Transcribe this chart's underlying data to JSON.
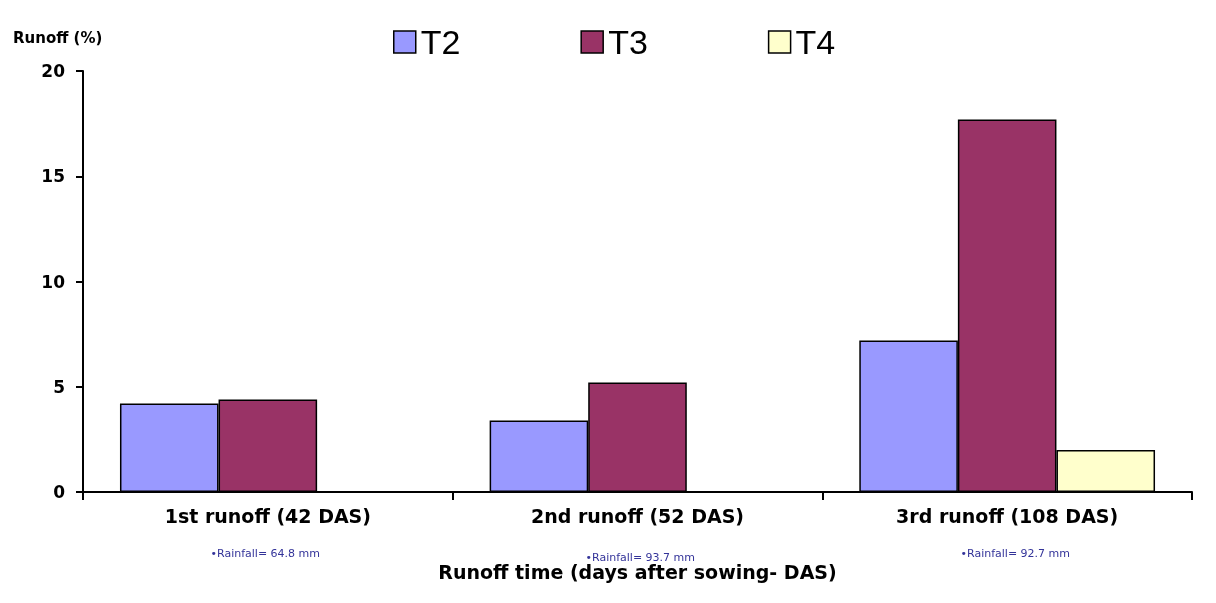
{
  "chart_data": {
    "type": "bar",
    "ylabel": "Runoff (%)",
    "xlabel": "Runoff time (days after sowing- DAS)",
    "categories": [
      "1st runoff (42 DAS)",
      "2nd runoff (52 DAS)",
      "3rd runoff (108 DAS)"
    ],
    "series": [
      {
        "name": "T2",
        "color": "#9999ff",
        "values": [
          4.2,
          3.4,
          7.2
        ]
      },
      {
        "name": "T3",
        "color": "#993366",
        "values": [
          4.4,
          5.2,
          17.7
        ]
      },
      {
        "name": "T4",
        "color": "#ffffcc",
        "values": [
          null,
          null,
          2.0
        ]
      }
    ],
    "ylim": [
      0,
      20
    ],
    "yticks": [
      0,
      5,
      10,
      15,
      20
    ],
    "grid": false,
    "legend": "top",
    "annotations": [
      "•Rainfall= 64.8 mm",
      "•Rainfall= 93.7 mm",
      "•Rainfall= 92.7 mm"
    ]
  }
}
